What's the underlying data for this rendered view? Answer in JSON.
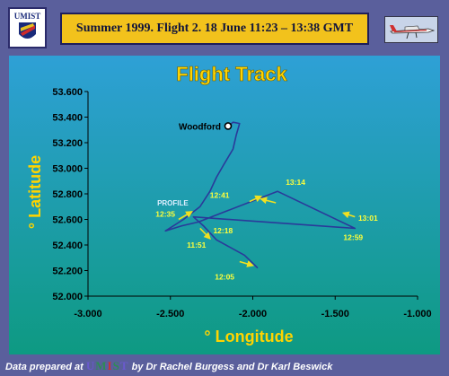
{
  "header": {
    "title": "Summer 1999.   Flight 2.   18 June  11:23 – 13:38 GMT"
  },
  "logo": {
    "text": "UMIST"
  },
  "icons": {
    "plane": "airplane-icon",
    "logo": "umist-logo-icon"
  },
  "colors": {
    "frame": "#5a5f9c",
    "plot_top": "#2ea0d6",
    "plot_bottom": "#0e9a82",
    "title": "#ffd400",
    "track": "#2a3a9a",
    "arrow": "#f0e020",
    "time_label": "#ffff3a",
    "header_bg": "#f2c21c"
  },
  "footer": {
    "prefix": "Data prepared at ",
    "org_letters": [
      "U",
      "M",
      "I",
      "S",
      "T"
    ],
    "org_colors": [
      "#6a5acd",
      "#2e8b57",
      "#cc3333",
      "#2e8b57",
      "#6a5acd"
    ],
    "suffix": " by Dr Rachel Burgess and Dr Karl Beswick"
  },
  "chart_data": {
    "type": "line",
    "title": "Flight Track",
    "xlabel": "° Longitude",
    "ylabel": "° Latitude",
    "xlim": [
      -3.0,
      -1.0
    ],
    "ylim": [
      52.0,
      53.6
    ],
    "xticks": [
      -3.0,
      -2.5,
      -2.0,
      -1.5,
      -1.0
    ],
    "xtick_labels": [
      "-3.000",
      "-2.500",
      "-2.000",
      "-1.500",
      "-1.000"
    ],
    "yticks": [
      52.0,
      52.2,
      52.4,
      52.6,
      52.8,
      53.0,
      53.2,
      53.4,
      53.6
    ],
    "ytick_labels": [
      "52.000",
      "52.200",
      "52.400",
      "52.600",
      "52.800",
      "53.000",
      "53.200",
      "53.400",
      "53.600"
    ],
    "grid": false,
    "series": [
      {
        "points": [
          [
            -2.15,
            53.33
          ],
          [
            -2.12,
            53.36
          ],
          [
            -2.08,
            53.35
          ],
          [
            -2.1,
            53.26
          ],
          [
            -2.12,
            53.15
          ],
          [
            -2.18,
            53.02
          ],
          [
            -2.22,
            52.93
          ],
          [
            -2.26,
            52.82
          ],
          [
            -2.32,
            52.7
          ],
          [
            -2.38,
            52.64
          ],
          [
            -2.42,
            52.6
          ],
          [
            -2.53,
            52.51
          ],
          [
            -2.43,
            52.55
          ],
          [
            -2.33,
            52.58
          ],
          [
            -1.85,
            52.82
          ],
          [
            -1.38,
            52.53
          ],
          [
            -2.36,
            52.62
          ],
          [
            -2.3,
            52.55
          ],
          [
            -2.22,
            52.44
          ],
          [
            -2.05,
            52.32
          ],
          [
            -1.97,
            52.22
          ]
        ]
      }
    ],
    "annotations": [
      {
        "text": "Woodford",
        "x": -2.15,
        "y": 53.33,
        "marker": "circle"
      },
      {
        "text": "PROFILE",
        "x": -2.58,
        "y": 52.71
      },
      {
        "text": "12:35",
        "x": -2.59,
        "y": 52.62
      },
      {
        "text": "12:41",
        "x": -2.26,
        "y": 52.77
      },
      {
        "text": "13:14",
        "x": -1.8,
        "y": 52.87
      },
      {
        "text": "13:01",
        "x": -1.36,
        "y": 52.59
      },
      {
        "text": "12:59",
        "x": -1.45,
        "y": 52.44
      },
      {
        "text": "12:18",
        "x": -2.24,
        "y": 52.49
      },
      {
        "text": "11:51",
        "x": -2.4,
        "y": 52.38
      },
      {
        "text": "12:05",
        "x": -2.23,
        "y": 52.13
      }
    ],
    "arrows": [
      {
        "from": [
          -2.45,
          52.6
        ],
        "to": [
          -2.37,
          52.66
        ]
      },
      {
        "from": [
          -2.02,
          52.74
        ],
        "to": [
          -1.95,
          52.78
        ]
      },
      {
        "from": [
          -1.86,
          52.73
        ],
        "to": [
          -1.95,
          52.76
        ]
      },
      {
        "from": [
          -1.38,
          52.62
        ],
        "to": [
          -1.45,
          52.65
        ]
      },
      {
        "from": [
          -2.32,
          52.53
        ],
        "to": [
          -2.26,
          52.45
        ]
      },
      {
        "from": [
          -2.08,
          52.27
        ],
        "to": [
          -2.0,
          52.24
        ]
      }
    ]
  }
}
